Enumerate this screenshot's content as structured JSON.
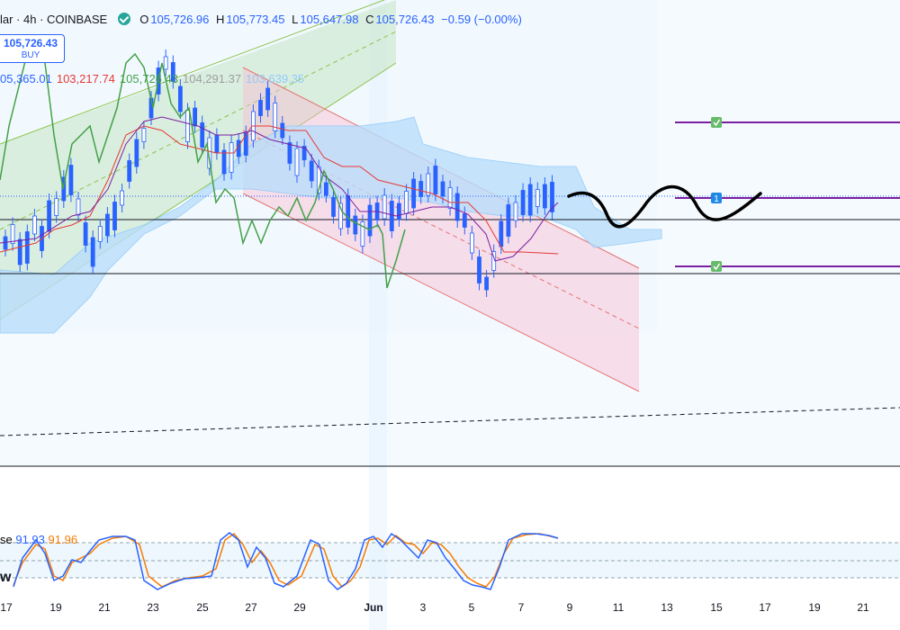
{
  "header": {
    "symbol": "lar · 4h · COINBASE",
    "status_icon": "check-circle-icon",
    "ohlc": [
      {
        "key": "O",
        "value": "105,726.96"
      },
      {
        "key": "H",
        "value": "105,773.45"
      },
      {
        "key": "L",
        "value": "105,647.98"
      },
      {
        "key": "C",
        "value": "105,726.43"
      },
      {
        "key": "",
        "value": "−0.59 (−0.00%)"
      }
    ]
  },
  "buy_button": {
    "price": "105,726.43",
    "label": "BUY"
  },
  "ichimoku_values": [
    {
      "text": "05,365.01",
      "color": "#2962ff"
    },
    {
      "text": "103,217.74",
      "color": "#e53935"
    },
    {
      "text": "105,726.43",
      "color": "#43a047"
    },
    {
      "text": "104,291.37",
      "color": "#9e9e9e"
    },
    {
      "text": "103,639.35",
      "color": "#90caf9"
    }
  ],
  "stoch": {
    "label": "se",
    "k_value": "91.93",
    "d_value": "91.96",
    "k_color": "#2962ff",
    "d_color": "#f57c00"
  },
  "w_label": "w",
  "x_axis": [
    "17",
    "19",
    "21",
    "23",
    "25",
    "27",
    "29",
    "Jun",
    "3",
    "5",
    "7",
    "9",
    "11",
    "13",
    "15",
    "17",
    "19",
    "21"
  ],
  "markers": [
    {
      "kind": "check",
      "icon": "check-square-icon"
    },
    {
      "kind": "number",
      "text": "1"
    },
    {
      "kind": "check",
      "icon": "check-square-icon"
    }
  ],
  "colors": {
    "up": "#2962ff",
    "down": "#2962ff",
    "tenkan": "#e53935",
    "kijun": "#7b1fa2",
    "chikou": "#43a047",
    "cloud": "#bbdefb",
    "channel_up": "#c5e1a5",
    "channel_down": "#f8bbd0",
    "target_line": "#7b1fa2"
  }
}
